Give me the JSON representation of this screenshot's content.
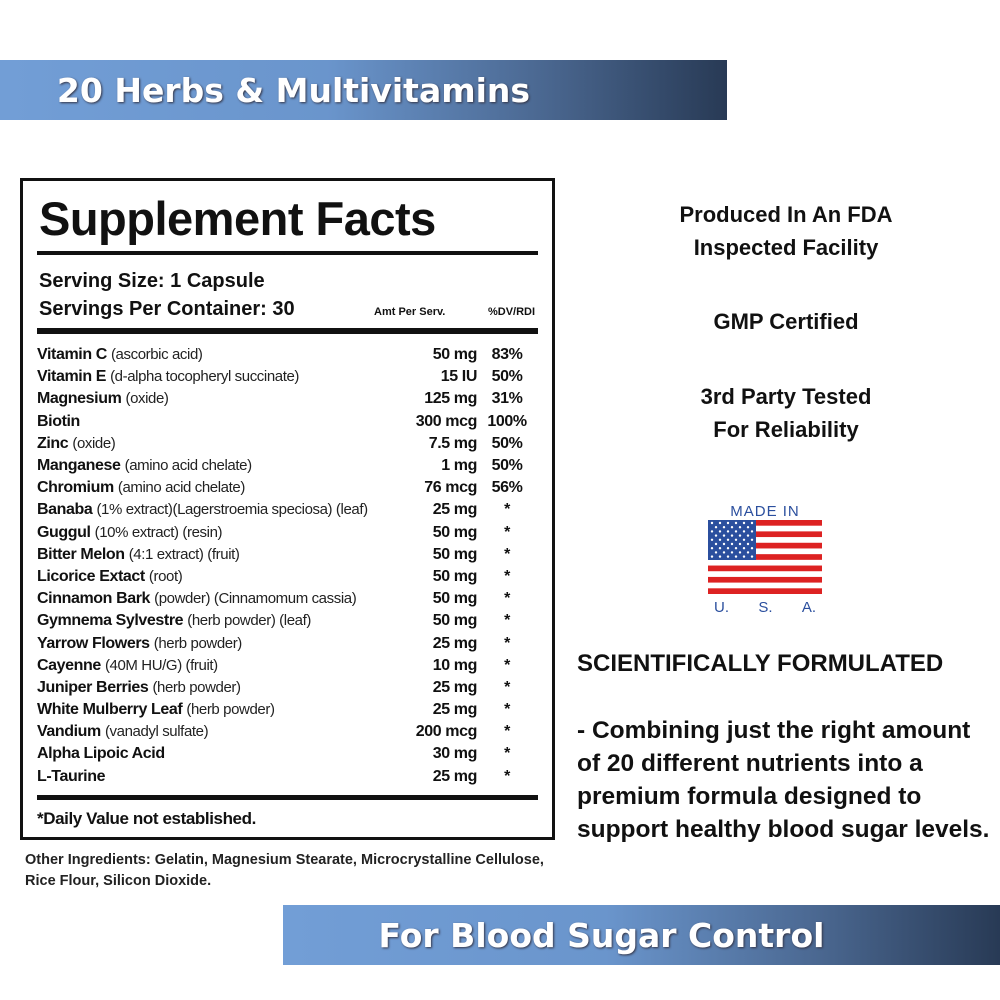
{
  "top_banner": "20 Herbs & Multivitamins",
  "bottom_banner": "For Blood Sugar Control",
  "banner_colors": [
    "#729ed6",
    "#283a55"
  ],
  "facts": {
    "title": "Supplement Facts",
    "serving_size": "Serving Size: 1 Capsule",
    "servings_per_container": "Servings Per Container: 30",
    "col_amt": "Amt Per Serv.",
    "col_dv": "%DV/RDI",
    "rows": [
      {
        "name": "Vitamin C",
        "detail": "(ascorbic acid)",
        "amount": "50 mg",
        "dv": "83%"
      },
      {
        "name": "Vitamin E",
        "detail": "(d-alpha tocopheryl succinate)",
        "amount": "15 IU",
        "dv": "50%"
      },
      {
        "name": "Magnesium",
        "detail": "(oxide)",
        "amount": "125 mg",
        "dv": "31%"
      },
      {
        "name": "Biotin",
        "detail": "",
        "amount": "300 mcg",
        "dv": "100%"
      },
      {
        "name": "Zinc",
        "detail": "(oxide)",
        "amount": "7.5 mg",
        "dv": "50%"
      },
      {
        "name": "Manganese",
        "detail": "(amino acid chelate)",
        "amount": "1 mg",
        "dv": "50%"
      },
      {
        "name": "Chromium",
        "detail": "(amino acid chelate)",
        "amount": "76 mcg",
        "dv": "56%"
      },
      {
        "name": "Banaba",
        "detail": "(1% extract)(Lagerstroemia speciosa) (leaf)",
        "amount": "25 mg",
        "dv": "*"
      },
      {
        "name": "Guggul",
        "detail": "(10% extract) (resin)",
        "amount": "50 mg",
        "dv": "*"
      },
      {
        "name": "Bitter Melon",
        "detail": "(4:1 extract) (fruit)",
        "amount": "50 mg",
        "dv": "*"
      },
      {
        "name": "Licorice Extact",
        "detail": "(root)",
        "amount": "50 mg",
        "dv": "*"
      },
      {
        "name": "Cinnamon Bark",
        "detail": "(powder) (Cinnamomum cassia)",
        "amount": "50 mg",
        "dv": "*"
      },
      {
        "name": "Gymnema Sylvestre",
        "detail": "(herb powder) (leaf)",
        "amount": "50 mg",
        "dv": "*"
      },
      {
        "name": "Yarrow Flowers",
        "detail": "(herb powder)",
        "amount": "25 mg",
        "dv": "*"
      },
      {
        "name": "Cayenne",
        "detail": "(40M HU/G) (fruit)",
        "amount": "10 mg",
        "dv": "*"
      },
      {
        "name": "Juniper Berries",
        "detail": "(herb powder)",
        "amount": "25 mg",
        "dv": "*"
      },
      {
        "name": "White Mulberry Leaf",
        "detail": "(herb powder)",
        "amount": "25 mg",
        "dv": "*"
      },
      {
        "name": "Vandium",
        "detail": "(vanadyl sulfate)",
        "amount": "200 mcg",
        "dv": "*"
      },
      {
        "name": "Alpha Lipoic Acid",
        "detail": "",
        "amount": "30 mg",
        "dv": "*"
      },
      {
        "name": "L-Taurine",
        "detail": "",
        "amount": "25 mg",
        "dv": "*"
      }
    ],
    "footnote": "*Daily Value not established."
  },
  "other_ingredients": "Other Ingredients: Gelatin, Magnesium Stearate, Microcrystalline Cellulose, Rice Flour, Silicon Dioxide.",
  "right": {
    "fda_1": "Produced In An FDA",
    "fda_2": "Inspected Facility",
    "gmp": "GMP Certified",
    "tested_1": "3rd Party Tested",
    "tested_2": "For Reliability",
    "flag_top": "MADE IN",
    "flag_letters": [
      "U.",
      "S.",
      "A."
    ],
    "sci_heading": "SCIENTIFICALLY FORMULATED",
    "paragraph": "- Combining just the right amount of 20 different nutrients into a premium formula designed to support healthy blood sugar levels."
  }
}
